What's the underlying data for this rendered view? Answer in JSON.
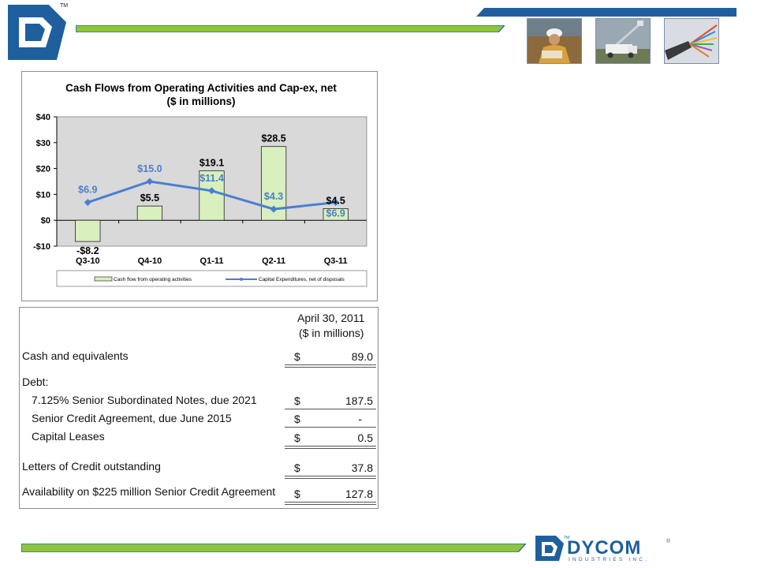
{
  "brand": {
    "trademark": "TM",
    "name": "DYCOM",
    "registered": "®",
    "subtitle": "INDUSTRIES INC.",
    "colors": {
      "navy": "#1f5f9e",
      "green": "#8cc63f",
      "green_light": "#d8efbe",
      "blue_line": "#4a7fd0"
    }
  },
  "header": {
    "photos": [
      {
        "icon": "worker-photo-icon"
      },
      {
        "icon": "bucket-truck-photo-icon"
      },
      {
        "icon": "fiber-cable-photo-icon"
      }
    ]
  },
  "chart_data": {
    "type": "bar",
    "title": "Cash Flows from Operating Activities and Cap-ex, net",
    "subtitle": "($ in millions)",
    "categories": [
      "Q3-10",
      "Q4-10",
      "Q1-11",
      "Q2-11",
      "Q3-11"
    ],
    "series": [
      {
        "name": "Cash flow from operating activities",
        "kind": "bar",
        "values": [
          -8.2,
          5.5,
          19.1,
          28.5,
          4.5
        ],
        "labels": [
          "-$8.2",
          "$5.5",
          "$19.1",
          "$28.5",
          "$4.5"
        ],
        "color": "#d8efbe"
      },
      {
        "name": "Capital Expenditures, net of disposals",
        "kind": "line",
        "values": [
          6.9,
          15.0,
          11.4,
          4.3,
          6.9
        ],
        "labels": [
          "$6.9",
          "$15.0",
          "$11.4",
          "$4.3",
          "$6.9"
        ],
        "color": "#4a7fd0"
      }
    ],
    "ylim": [
      -10,
      40
    ],
    "yticks": [
      -10,
      0,
      10,
      20,
      30,
      40
    ],
    "ytick_labels": [
      "-$10",
      "$0",
      "$10",
      "$20",
      "$30",
      "$40"
    ],
    "grid": false,
    "legend_position": "bottom"
  },
  "table": {
    "header_line1": "April 30, 2011",
    "header_line2": "($ in millions)",
    "rows": {
      "cash": {
        "label": "Cash and equivalents",
        "dollar": "$",
        "value": "89.0"
      },
      "debt_heading": {
        "label": "Debt:"
      },
      "notes": {
        "label": "7.125% Senior Subordinated Notes, due 2021",
        "dollar": "$",
        "value": "187.5"
      },
      "credit": {
        "label": "Senior Credit Agreement, due June 2015",
        "dollar": "$",
        "value": "-"
      },
      "leases": {
        "label": "Capital Leases",
        "dollar": "$",
        "value": "0.5"
      },
      "loc": {
        "label": "Letters of Credit outstanding",
        "dollar": "$",
        "value": "37.8"
      },
      "availability": {
        "label": "Availability on $225 million Senior Credit Agreement",
        "dollar": "$",
        "value": "127.8"
      }
    }
  }
}
